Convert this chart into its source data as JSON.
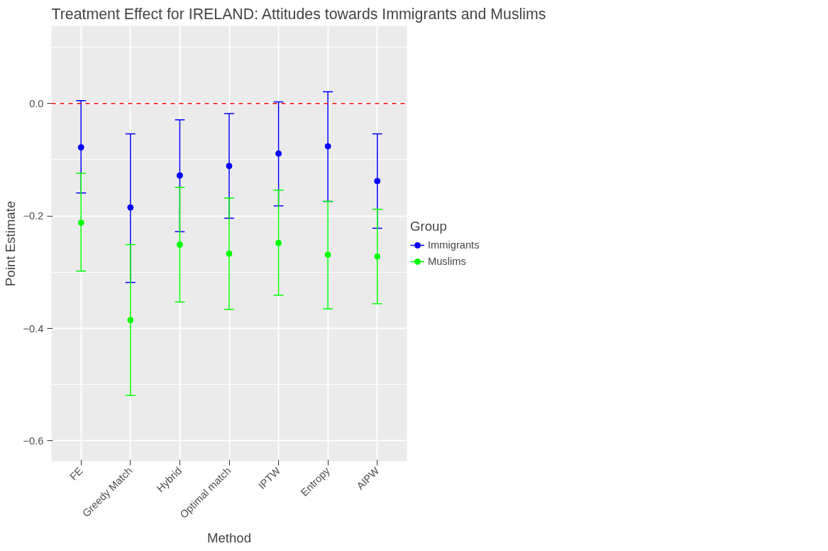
{
  "chart_data": {
    "type": "scatter",
    "title": "Treatment Effect for IRELAND: Attitudes towards Immigrants and Muslims",
    "xlabel": "Method",
    "ylabel": "Point Estimate",
    "legend_title": "Group",
    "categories": [
      "FE",
      "Greedy Match",
      "Hybrid",
      "Optimal match",
      "IPTW",
      "Entropy",
      "AIPW"
    ],
    "series": [
      {
        "name": "Immigrants",
        "color": "#0000ff",
        "values": [
          -0.078,
          -0.185,
          -0.128,
          -0.111,
          -0.089,
          -0.076,
          -0.138
        ],
        "errors": [
          [
            -0.159,
            0.005
          ],
          [
            -0.318,
            -0.054
          ],
          [
            -0.228,
            -0.029
          ],
          [
            -0.204,
            -0.018
          ],
          [
            -0.182,
            0.003
          ],
          [
            -0.174,
            0.021
          ],
          [
            -0.222,
            -0.054
          ]
        ]
      },
      {
        "name": "Muslims",
        "color": "#00ff00",
        "values": [
          -0.212,
          -0.385,
          -0.251,
          -0.267,
          -0.248,
          -0.269,
          -0.272
        ],
        "errors": [
          [
            -0.298,
            -0.124
          ],
          [
            -0.519,
            -0.251
          ],
          [
            -0.353,
            -0.149
          ],
          [
            -0.366,
            -0.168
          ],
          [
            -0.341,
            -0.154
          ],
          [
            -0.365,
            -0.174
          ],
          [
            -0.356,
            -0.188
          ]
        ]
      }
    ],
    "ylim": [
      -0.636,
      0.138
    ],
    "yticks": [
      {
        "value": -0.6,
        "label": "−0.6"
      },
      {
        "value": -0.4,
        "label": "−0.4"
      },
      {
        "value": -0.2,
        "label": "−0.2"
      },
      {
        "value": 0,
        "label": "0.0"
      }
    ],
    "ref_lines": [
      {
        "axis": "y",
        "value": 0,
        "color": "#ff0000",
        "line_style": "dashed"
      }
    ],
    "grid": true,
    "legend": "right",
    "marker": "circle",
    "line_style": "solid"
  }
}
